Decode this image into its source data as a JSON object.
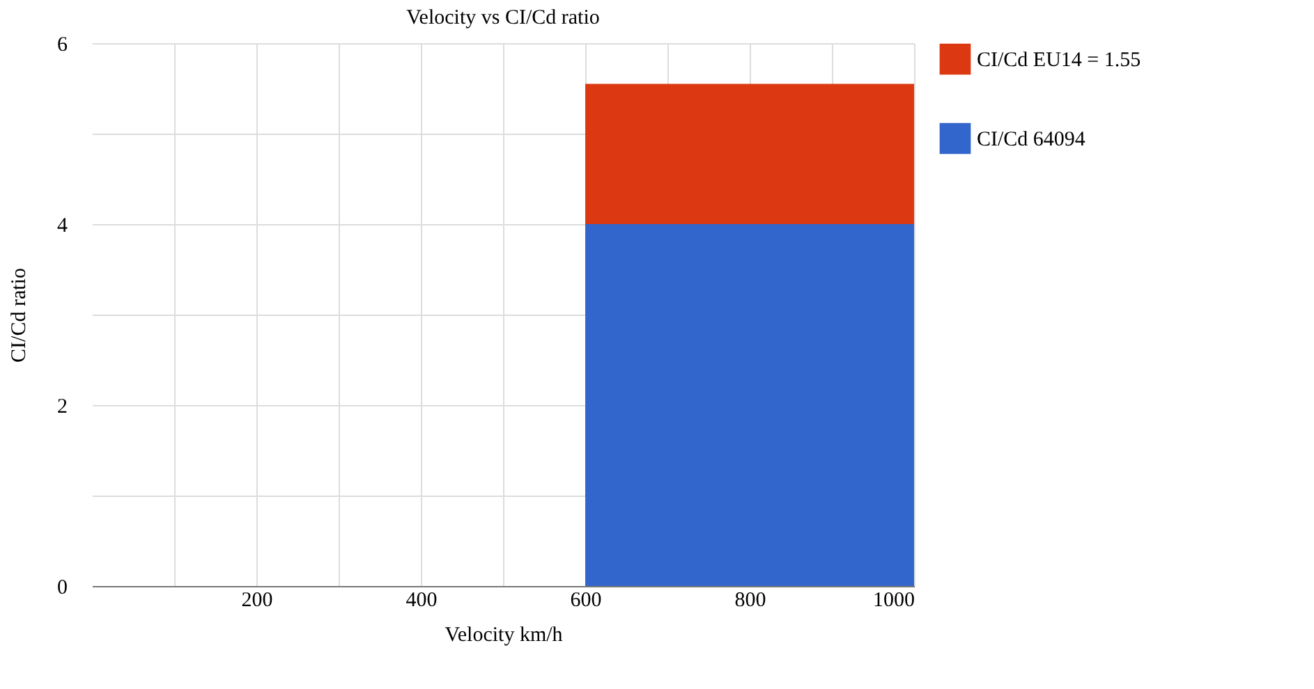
{
  "chart_data": {
    "type": "area",
    "title": "Velocity vs CI/Cd ratio",
    "xlabel": "Velocity km/h",
    "ylabel": "CI/Cd ratio",
    "x": [
      600,
      1000
    ],
    "stacked": true,
    "series": [
      {
        "name": "CI/Cd 64094",
        "color": "#3366cc",
        "values": [
          4,
          4
        ]
      },
      {
        "name": "CI/Cd EU14 = 1.55",
        "color": "#dc3912",
        "values": [
          1.55,
          1.55
        ]
      }
    ],
    "xlim": [
      0,
      1000
    ],
    "xticks": [
      {
        "value": 100,
        "label": null
      },
      200,
      {
        "value": 300,
        "label": null
      },
      400,
      {
        "value": 500,
        "label": null
      },
      600,
      {
        "value": 700,
        "label": null
      },
      800,
      {
        "value": 900,
        "label": null
      },
      1000
    ],
    "ylim": [
      0,
      6
    ],
    "yticks": [
      0,
      {
        "value": 1,
        "label": null
      },
      2,
      {
        "value": 3,
        "label": null
      },
      4,
      {
        "value": 5,
        "label": null
      },
      6
    ],
    "grid": true,
    "legend": "top right"
  }
}
